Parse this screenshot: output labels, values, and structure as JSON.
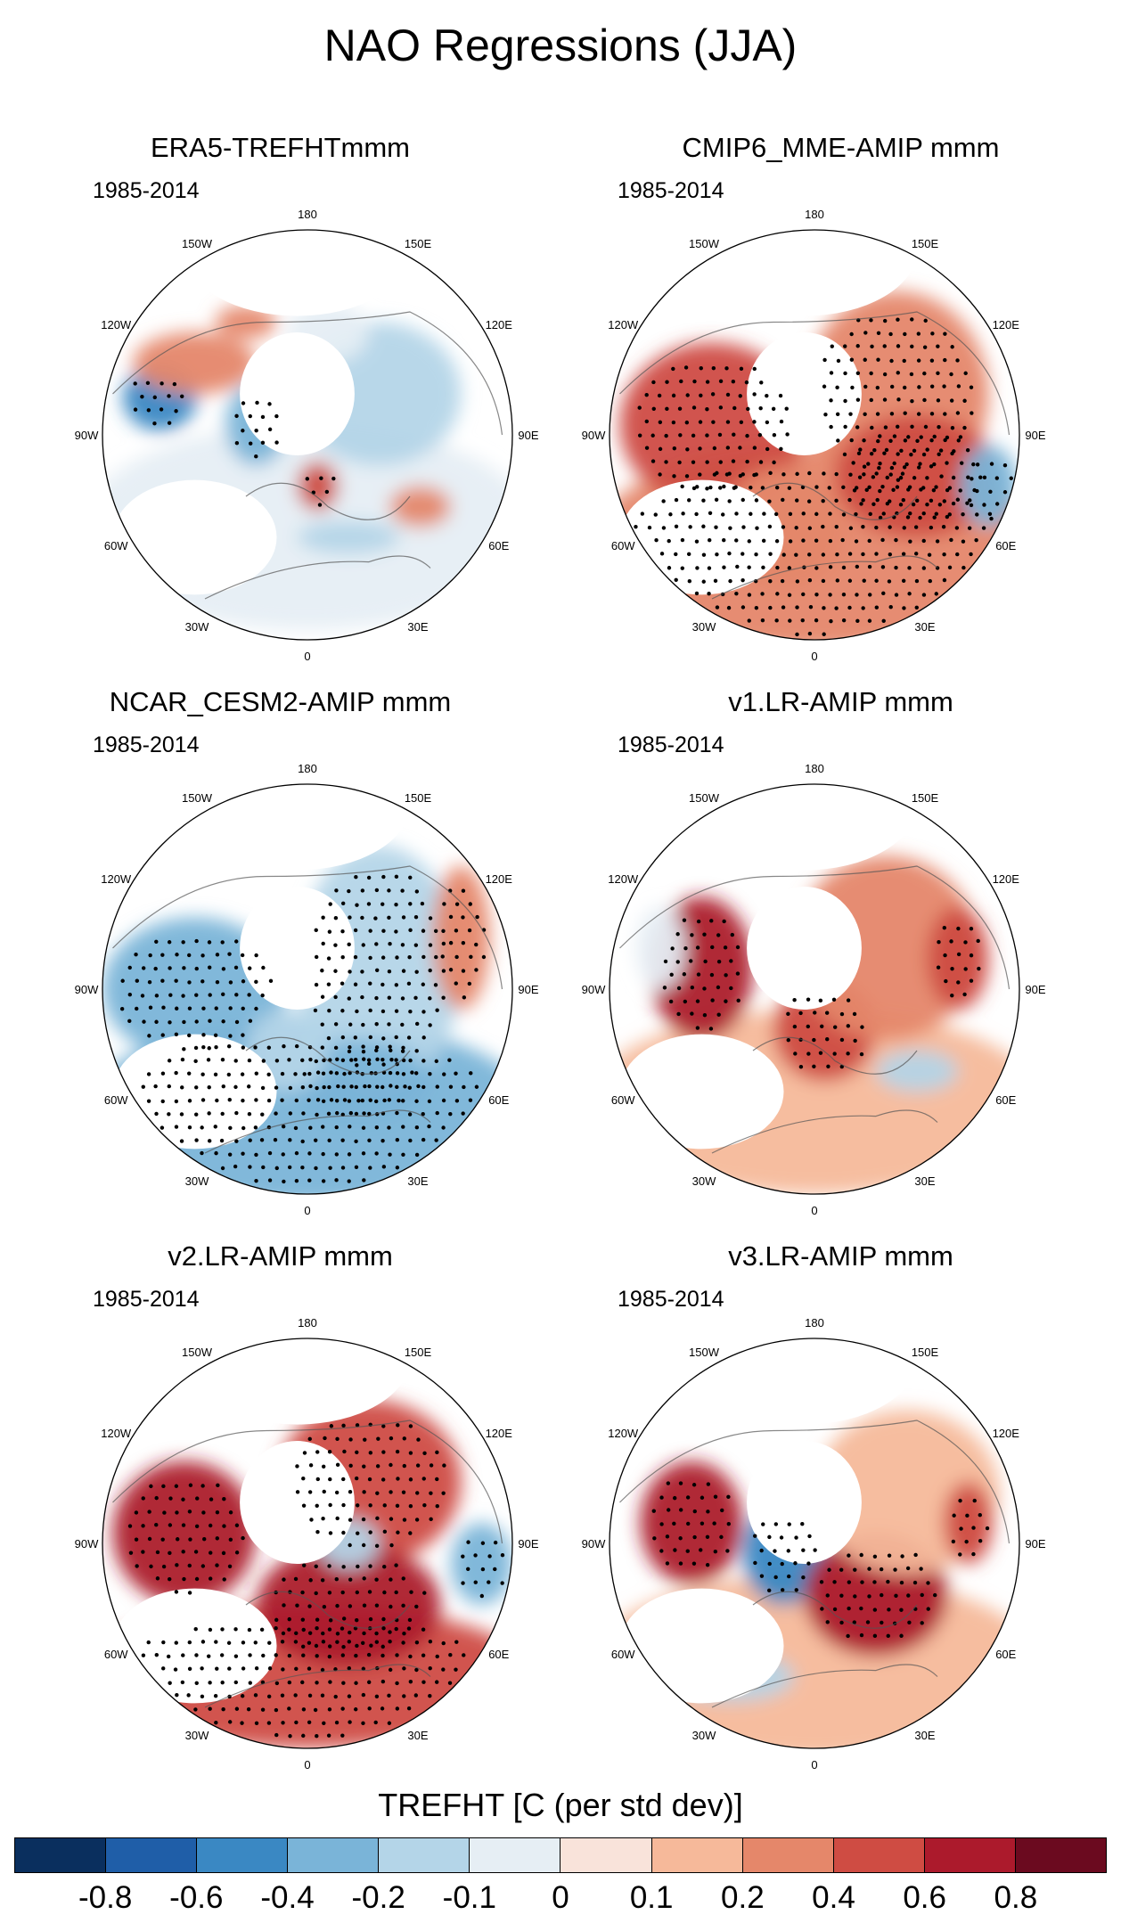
{
  "title": "NAO Regressions (JJA)",
  "colorbar": {
    "title": "TREFHT [C (per std dev)]",
    "ticks": [
      "-0.8",
      "-0.6",
      "-0.4",
      "-0.2",
      "-0.1",
      "0",
      "0.1",
      "0.2",
      "0.4",
      "0.6",
      "0.8"
    ],
    "colors": [
      "#0a2f5e",
      "#1f5ea8",
      "#3a88c3",
      "#7ab4d8",
      "#b4d5e8",
      "#e6eef4",
      "#f9e3da",
      "#f6b99a",
      "#e5876a",
      "#cf4c43",
      "#ac1a2c",
      "#6b0a1f"
    ]
  },
  "chart_data": [
    {
      "type": "map",
      "title": "ERA5-TREFHTmmm",
      "period": "1985-2014",
      "projection": "north-polar-stereographic",
      "lon_labels": [
        "180",
        "150W",
        "150E",
        "120W",
        "120E",
        "90W",
        "90E",
        "60W",
        "60E",
        "30W",
        "30E",
        "0"
      ],
      "pattern": "mixed",
      "features": [
        {
          "region": "Hudson Bay / NE Canada",
          "value": -0.6,
          "stippled": true
        },
        {
          "region": "Alaska / NW Canada",
          "value": 0.2
        },
        {
          "region": "Canadian Archipelago",
          "value": -0.4,
          "stippled": true
        },
        {
          "region": "Scandinavia / NW Europe",
          "value": 0.4,
          "stippled": true
        },
        {
          "region": "Mediterranean / Central Europe",
          "value": -0.2
        },
        {
          "region": "Siberia",
          "value": -0.2
        },
        {
          "region": "Western Russia",
          "value": 0.2
        },
        {
          "region": "North Africa",
          "value": -0.1
        }
      ]
    },
    {
      "type": "map",
      "title": "CMIP6_MME-AMIP  mmm",
      "period": "1985-2014",
      "projection": "north-polar-stereographic",
      "lon_labels": [
        "180",
        "150W",
        "150E",
        "120W",
        "120E",
        "90W",
        "90E",
        "60W",
        "60E",
        "30W",
        "30E",
        "0"
      ],
      "pattern": "broad-warm",
      "features": [
        {
          "region": "North America",
          "value": 0.4,
          "stippled": true
        },
        {
          "region": "Eurasia",
          "value": 0.2,
          "stippled": true
        },
        {
          "region": "Europe / North Africa",
          "value": 0.2,
          "stippled": true
        },
        {
          "region": "Central Asia",
          "value": -0.4,
          "stippled": true
        }
      ]
    },
    {
      "type": "map",
      "title": "NCAR_CESM2-AMIP  mmm",
      "period": "1985-2014",
      "projection": "north-polar-stereographic",
      "lon_labels": [
        "180",
        "150W",
        "150E",
        "120W",
        "120E",
        "90W",
        "90E",
        "60W",
        "60E",
        "30W",
        "30E",
        "0"
      ],
      "pattern": "broad-cool",
      "features": [
        {
          "region": "North America",
          "value": -0.4,
          "stippled": true
        },
        {
          "region": "Eurasia",
          "value": -0.4,
          "stippled": true
        },
        {
          "region": "North Africa / Mediterranean",
          "value": -0.4,
          "stippled": true
        },
        {
          "region": "East Asia",
          "value": 0.2,
          "stippled": true
        }
      ]
    },
    {
      "type": "map",
      "title": "v1.LR-AMIP  mmm",
      "period": "1985-2014",
      "projection": "north-polar-stereographic",
      "lon_labels": [
        "180",
        "150W",
        "150E",
        "120W",
        "120E",
        "90W",
        "90E",
        "60W",
        "60E",
        "30W",
        "30E",
        "0"
      ],
      "pattern": "warm-pockets",
      "features": [
        {
          "region": "Central Canada",
          "value": 0.6,
          "stippled": true
        },
        {
          "region": "Northern Europe",
          "value": 0.4,
          "stippled": true
        },
        {
          "region": "Siberia",
          "value": 0.2
        },
        {
          "region": "East Asia",
          "value": 0.4,
          "stippled": true
        },
        {
          "region": "North Africa",
          "value": 0.1
        }
      ]
    },
    {
      "type": "map",
      "title": "v2.LR-AMIP  mmm",
      "period": "1985-2014",
      "projection": "north-polar-stereographic",
      "lon_labels": [
        "180",
        "150W",
        "150E",
        "120W",
        "120E",
        "90W",
        "90E",
        "60W",
        "60E",
        "30W",
        "30E",
        "0"
      ],
      "pattern": "strong-warm",
      "features": [
        {
          "region": "Eastern Canada",
          "value": 0.6,
          "stippled": true
        },
        {
          "region": "Europe",
          "value": 0.6,
          "stippled": true
        },
        {
          "region": "Siberia",
          "value": 0.4,
          "stippled": true
        },
        {
          "region": "Central Asia",
          "value": -0.4,
          "stippled": true
        },
        {
          "region": "North Africa",
          "value": 0.4,
          "stippled": true
        }
      ]
    },
    {
      "type": "map",
      "title": "v3.LR-AMIP  mmm",
      "period": "1985-2014",
      "projection": "north-polar-stereographic",
      "lon_labels": [
        "180",
        "150W",
        "150E",
        "120W",
        "120E",
        "90W",
        "90E",
        "60W",
        "60E",
        "30W",
        "30E",
        "0"
      ],
      "pattern": "warm-eu",
      "features": [
        {
          "region": "Central Canada",
          "value": 0.6,
          "stippled": true
        },
        {
          "region": "Baffin / Labrador",
          "value": -0.6,
          "stippled": true
        },
        {
          "region": "Eastern Europe",
          "value": 0.6,
          "stippled": true
        },
        {
          "region": "Siberia",
          "value": 0.1
        },
        {
          "region": "North Africa",
          "value": 0.2
        }
      ]
    }
  ]
}
